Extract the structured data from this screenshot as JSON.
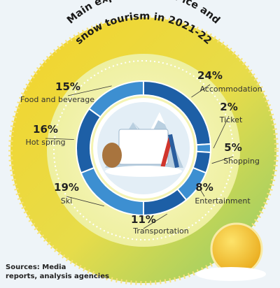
{
  "chart_data": {
    "type": "pie",
    "title": [
      "Main expenditure of ice and",
      "snow tourism in 2021-22"
    ],
    "categories": [
      "Accommodation",
      "Ticket",
      "Shopping",
      "Entertainment",
      "Transportation",
      "Ski",
      "Hot spring",
      "Food and beverage"
    ],
    "values": [
      24,
      2,
      5,
      8,
      11,
      19,
      16,
      15
    ],
    "value_labels": [
      "24%",
      "2%",
      "5%",
      "8%",
      "11%",
      "19%",
      "16%",
      "15%"
    ],
    "colors": [
      "#1d5fa6",
      "#3d8fd1",
      "#1d5fa6",
      "#3d8fd1",
      "#1d5fa6",
      "#3d8fd1",
      "#1d5fa6",
      "#3d8fd1"
    ],
    "source": [
      "Sources: Media",
      "reports, analysis agencies"
    ]
  }
}
